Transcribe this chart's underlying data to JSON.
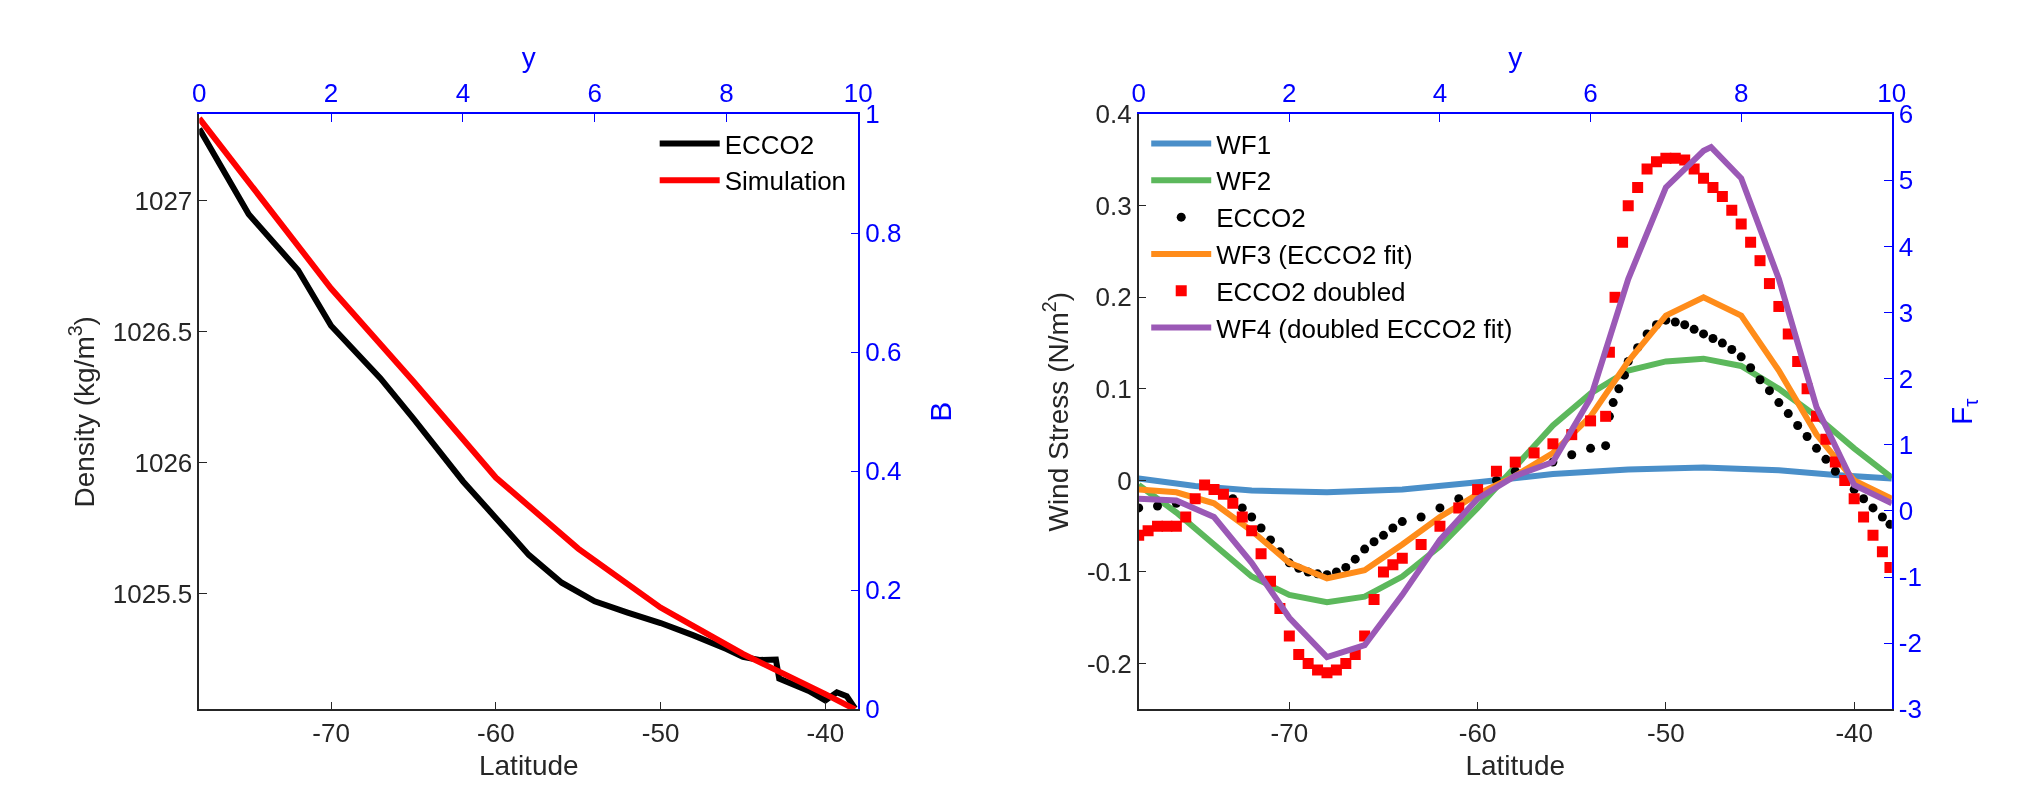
{
  "chart_data": [
    {
      "type": "line",
      "xlabel": "Latitude",
      "ylabel": "Density (kg/m$^{3}$)",
      "x2label": "y",
      "y2label": "B",
      "legend": "top right",
      "xlim": [
        -78,
        -38
      ],
      "xticks": [
        -70,
        -60,
        -50,
        -40
      ],
      "ylim": [
        1025.06,
        1027.33
      ],
      "yticks": [
        1025.5,
        1026,
        1026.5,
        1027
      ],
      "x2lim": [
        0,
        10
      ],
      "x2ticks": [
        0,
        2,
        4,
        6,
        8,
        10
      ],
      "y2lim": [
        0,
        1
      ],
      "y2ticks": [
        0,
        0.2,
        0.4,
        0.6,
        0.8,
        1
      ],
      "series": [
        {
          "name": "ECCO2",
          "color": "#000000",
          "x": [
            -78,
            -75,
            -72,
            -70,
            -67,
            -65,
            -62,
            -60,
            -58,
            -56,
            -54,
            -52,
            -50,
            -48,
            -46,
            -45,
            -44,
            -43,
            -42.8,
            -41,
            -40,
            -39.3,
            -38.7,
            -38.2
          ],
          "values": [
            1027.274,
            1026.948,
            1026.735,
            1026.523,
            1026.322,
            1026.169,
            1025.93,
            1025.79,
            1025.649,
            1025.543,
            1025.472,
            1025.429,
            1025.389,
            1025.342,
            1025.29,
            1025.26,
            1025.248,
            1025.25,
            1025.177,
            1025.13,
            1025.094,
            1025.125,
            1025.11,
            1025.063
          ]
        },
        {
          "name": "Simulation",
          "color": "#ff0000",
          "x": [
            -78,
            -70,
            -65,
            -60,
            -55,
            -50,
            -45,
            -40,
            -38.2
          ],
          "values": [
            1027.314,
            1026.665,
            1026.31,
            1025.944,
            1025.673,
            1025.448,
            1025.271,
            1025.118,
            1025.06
          ]
        }
      ]
    },
    {
      "type": "line",
      "xlabel": "Latitude",
      "ylabel": "Wind Stress (N/m$^{2}$)",
      "x2label": "y",
      "y2label": "F$_{τ}$",
      "legend": "top left",
      "xlim": [
        -78,
        -38
      ],
      "xticks": [
        -70,
        -60,
        -50,
        -40
      ],
      "ylim": [
        -0.25,
        0.4
      ],
      "yticks": [
        -0.2,
        -0.1,
        0,
        0.1,
        0.2,
        0.3,
        0.4
      ],
      "x2lim": [
        0,
        10
      ],
      "x2ticks": [
        0,
        2,
        4,
        6,
        8,
        10
      ],
      "y2lim": [
        -3,
        6
      ],
      "y2ticks": [
        -3,
        -2,
        -1,
        0,
        1,
        2,
        3,
        4,
        5,
        6
      ],
      "series": [
        {
          "name": "WF1",
          "color": "#4a8fc9",
          "x": [
            -78,
            -75,
            -72,
            -68,
            -64,
            -60,
            -56,
            -52,
            -48,
            -44,
            -41,
            -38
          ],
          "values": [
            0.002,
            -0.006,
            -0.011,
            -0.013,
            -0.01,
            -0.002,
            0.007,
            0.012,
            0.014,
            0.011,
            0.006,
            0.002
          ]
        },
        {
          "name": "WF2",
          "color": "#5cb85c",
          "x": [
            -78,
            -76,
            -74,
            -72,
            -70,
            -68,
            -66,
            -64,
            -62,
            -60,
            -58,
            -56,
            -54,
            -52,
            -50,
            -48,
            -46,
            -44,
            -42,
            -40,
            -38
          ],
          "values": [
            -0.005,
            -0.035,
            -0.07,
            -0.105,
            -0.125,
            -0.133,
            -0.127,
            -0.105,
            -0.072,
            -0.03,
            0.015,
            0.06,
            0.095,
            0.12,
            0.13,
            0.133,
            0.125,
            0.1,
            0.07,
            0.035,
            0.003
          ]
        },
        {
          "name": "ECCO2",
          "color": "#000000",
          "type": "scatter",
          "marker": "circle",
          "x": [
            -78,
            -77,
            -76,
            -74,
            -73.5,
            -73,
            -72.5,
            -72,
            -71.5,
            -71,
            -70.5,
            -70,
            -69.5,
            -69,
            -68.5,
            -68,
            -67.5,
            -67,
            -66.5,
            -66,
            -65.5,
            -65,
            -64.5,
            -64,
            -63,
            -62,
            -61,
            -59,
            -58,
            -56,
            -55,
            -54,
            -53.2,
            -53,
            -52.8,
            -52.5,
            -52.2,
            -52,
            -51.5,
            -51,
            -50.5,
            -50,
            -49.5,
            -49,
            -48.5,
            -48,
            -47.5,
            -47,
            -46.5,
            -46,
            -45.5,
            -45,
            -44.5,
            -44,
            -43.5,
            -43,
            -42.5,
            -42,
            -41.5,
            -41,
            -40,
            -39.5,
            -39,
            -38.5,
            -38.1
          ],
          "values": [
            -0.03,
            -0.028,
            -0.025,
            null,
            null,
            -0.02,
            -0.03,
            -0.04,
            -0.052,
            -0.065,
            -0.078,
            -0.09,
            -0.096,
            -0.1,
            -0.102,
            -0.103,
            -0.1,
            -0.095,
            -0.086,
            -0.075,
            -0.067,
            -0.06,
            -0.052,
            -0.045,
            -0.04,
            -0.03,
            -0.02,
            0,
            0.01,
            0.02,
            0.028,
            0.035,
            0.038,
            0.07,
            0.085,
            0.1,
            0.115,
            0.13,
            0.145,
            0.16,
            0.17,
            0.175,
            0.173,
            0.17,
            0.165,
            0.16,
            0.155,
            0.15,
            0.143,
            0.135,
            0.123,
            0.11,
            0.098,
            0.085,
            0.073,
            0.06,
            0.048,
            0.035,
            0.023,
            0.01,
            -0.01,
            -0.02,
            -0.03,
            -0.04,
            -0.048
          ]
        },
        {
          "name": "WF3 (ECCO2 fit)",
          "color": "#ff8c1a",
          "x": [
            -78,
            -76,
            -74,
            -72,
            -70,
            -68,
            -66,
            -64,
            -62,
            -60,
            -58,
            -56,
            -54,
            -52,
            -50,
            -48,
            -46,
            -44,
            -42,
            -40,
            -38
          ],
          "values": [
            -0.01,
            -0.013,
            -0.025,
            -0.055,
            -0.09,
            -0.107,
            -0.098,
            -0.07,
            -0.04,
            -0.015,
            0.005,
            0.03,
            0.07,
            0.13,
            0.18,
            0.2,
            0.18,
            0.12,
            0.05,
            0,
            -0.02
          ]
        },
        {
          "name": "ECCO2 doubled",
          "color": "#ff0000",
          "type": "scatter",
          "marker": "square",
          "x": [
            -78,
            -77.5,
            -77,
            -76.5,
            -76,
            -75.5,
            -75,
            -74.5,
            -74,
            -73.5,
            -73,
            -72.5,
            -72,
            -71.5,
            -71,
            -70.5,
            -70,
            -69.5,
            -69,
            -68.5,
            -68,
            -67.5,
            -67,
            -66.5,
            -66,
            -65.5,
            -65,
            -64.5,
            -64,
            -63,
            -62,
            -61,
            -60,
            -59,
            -58,
            -57,
            -56,
            -55,
            -54,
            -53.2,
            -53,
            -52.7,
            -52.3,
            -52,
            -51.5,
            -51,
            -50.5,
            -50,
            -49.5,
            -49,
            -48.5,
            -48,
            -47.5,
            -47,
            -46.5,
            -46,
            -45.5,
            -45,
            -44.5,
            -44,
            -43.5,
            -43,
            -42.5,
            -42,
            -41.5,
            -41,
            -40.5,
            -40,
            -39.5,
            -39,
            -38.5,
            -38.1
          ],
          "values": [
            -0.06,
            -0.055,
            -0.05,
            -0.05,
            -0.05,
            -0.04,
            -0.02,
            -0.005,
            -0.01,
            -0.015,
            -0.025,
            -0.04,
            -0.055,
            -0.08,
            -0.11,
            -0.14,
            -0.17,
            -0.19,
            -0.2,
            -0.207,
            -0.21,
            -0.207,
            -0.2,
            -0.19,
            -0.17,
            -0.13,
            -0.1,
            -0.092,
            -0.085,
            -0.07,
            -0.05,
            -0.03,
            -0.01,
            0.01,
            0.02,
            0.03,
            0.04,
            0.05,
            0.065,
            0.07,
            0.14,
            0.2,
            0.26,
            0.3,
            0.32,
            0.34,
            0.348,
            0.352,
            0.352,
            0.35,
            0.34,
            0.33,
            0.32,
            0.31,
            0.295,
            0.28,
            0.26,
            0.24,
            0.215,
            0.19,
            0.16,
            0.13,
            0.1,
            0.07,
            0.045,
            0.02,
            0,
            -0.02,
            -0.04,
            -0.06,
            -0.078,
            -0.095
          ]
        },
        {
          "name": "WF4 (doubled ECCO2 fit)",
          "color": "#9b59b6",
          "x": [
            -78,
            -76,
            -74,
            -72,
            -70,
            -68,
            -66,
            -64,
            -62,
            -60,
            -58,
            -56,
            -54,
            -52,
            -50,
            -48,
            -47.6,
            -46,
            -44,
            -42,
            -40,
            -38
          ],
          "values": [
            -0.02,
            -0.022,
            -0.04,
            -0.09,
            -0.15,
            -0.193,
            -0.18,
            -0.125,
            -0.065,
            -0.02,
            0.005,
            0.02,
            0.09,
            0.22,
            0.32,
            0.36,
            0.364,
            0.33,
            0.22,
            0.08,
            -0.005,
            -0.025
          ]
        }
      ]
    }
  ]
}
